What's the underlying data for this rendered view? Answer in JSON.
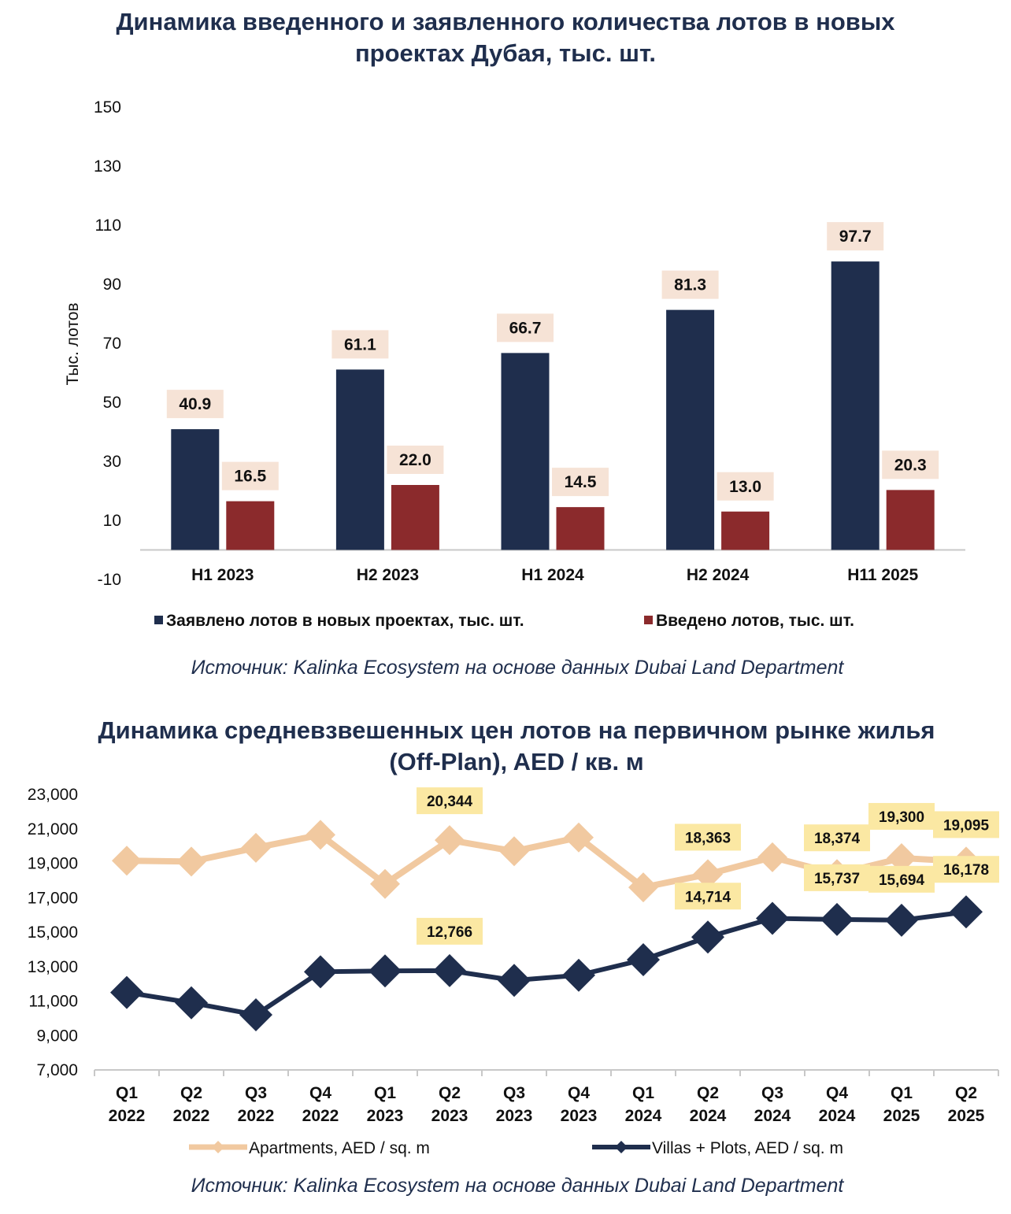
{
  "colors": {
    "navy": "#1f2e4d",
    "maroon": "#8b2a2c",
    "apartments": "#f1c9a0",
    "bar_label_bg": "#f6e3d6",
    "line_label_bg": "#fbe8a3"
  },
  "chart_data": [
    {
      "type": "bar",
      "title_lines": [
        "Динамика введенного и заявленного количества лотов в новых",
        "проектах Дубая, тыс. шт."
      ],
      "ylabel": "Тыс. лотов",
      "xlabel": "",
      "ylim": [
        -10,
        150
      ],
      "yticks": [
        -10,
        10,
        30,
        50,
        70,
        90,
        110,
        130,
        150
      ],
      "categories": [
        "H1 2023",
        "H2 2023",
        "H1 2024",
        "H2 2024",
        "H11 2025"
      ],
      "series": [
        {
          "name": "Заявлено лотов в новых проектах, тыс. шт.",
          "values": [
            40.9,
            61.1,
            66.7,
            81.3,
            97.7
          ],
          "labels": [
            "40.9",
            "61.1",
            "66.7",
            "81.3",
            "97.7"
          ],
          "color": "#1f2e4d"
        },
        {
          "name": "Введено лотов, тыс. шт.",
          "values": [
            16.5,
            22.0,
            14.5,
            13.0,
            20.3
          ],
          "labels": [
            "16.5",
            "22.0",
            "14.5",
            "13.0",
            "20.3"
          ],
          "color": "#8b2a2c"
        }
      ],
      "grid": false,
      "legend": "bottom",
      "source": "Источник: Kalinka Ecosystem на основе данных Dubai Land Department"
    },
    {
      "type": "line",
      "title_lines": [
        "Динамика средневзвешенных цен лотов на первичном рынке жилья",
        "(Off-Plan), AED / кв. м"
      ],
      "xlabel": "",
      "ylabel": "",
      "ylim": [
        7000,
        23000
      ],
      "yticks": [
        "7,000",
        "9,000",
        "11,000",
        "13,000",
        "15,000",
        "17,000",
        "19,000",
        "21,000",
        "23,000"
      ],
      "categories": [
        [
          "Q1",
          "2022"
        ],
        [
          "Q2",
          "2022"
        ],
        [
          "Q3",
          "2022"
        ],
        [
          "Q4",
          "2022"
        ],
        [
          "Q1",
          "2023"
        ],
        [
          "Q2",
          "2023"
        ],
        [
          "Q3",
          "2023"
        ],
        [
          "Q4",
          "2023"
        ],
        [
          "Q1",
          "2024"
        ],
        [
          "Q2",
          "2024"
        ],
        [
          "Q3",
          "2024"
        ],
        [
          "Q4",
          "2024"
        ],
        [
          "Q1",
          "2025"
        ],
        [
          "Q2",
          "2025"
        ]
      ],
      "series": [
        {
          "name": "Apartments, AED / sq. m",
          "color": "#f1c9a0",
          "values": [
            19150,
            19100,
            19900,
            20650,
            17800,
            20344,
            19700,
            20500,
            17600,
            18363,
            19350,
            18374,
            19300,
            19095
          ],
          "labels": [
            {
              "index": 5,
              "text": "20,344"
            },
            {
              "index": 9,
              "text": "18,363"
            },
            {
              "index": 11,
              "text": "18,374"
            },
            {
              "index": 12,
              "text": "19,300"
            },
            {
              "index": 13,
              "text": "19,095"
            }
          ]
        },
        {
          "name": "Villas + Plots, AED / sq. m",
          "color": "#1f2e4d",
          "values": [
            11500,
            10900,
            10200,
            12700,
            12750,
            12766,
            12200,
            12500,
            13400,
            14714,
            15800,
            15737,
            15694,
            16178
          ],
          "labels": [
            {
              "index": 5,
              "text": "12,766"
            },
            {
              "index": 9,
              "text": "14,714"
            },
            {
              "index": 11,
              "text": "15,737"
            },
            {
              "index": 12,
              "text": "15,694"
            },
            {
              "index": 13,
              "text": "16,178"
            }
          ]
        }
      ],
      "grid": false,
      "legend": "bottom",
      "source": "Источник: Kalinka Ecosystem на основе данных Dubai Land Department"
    }
  ]
}
